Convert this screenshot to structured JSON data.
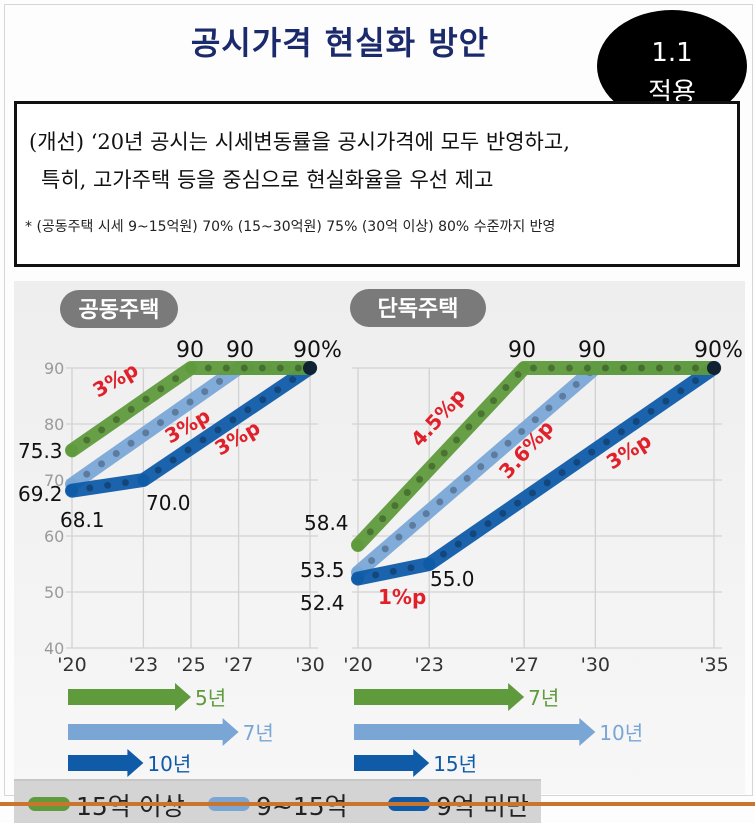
{
  "title": "공시가격 현실화 방안",
  "badge": {
    "line1": "1.1",
    "line2": "적용"
  },
  "summary": {
    "line1": "(개선) ‘20년 공시는 시세변동률을 공시가격에 모두 반영하고,",
    "line2": "특히, 고가주택 등을 중심으로 현실화율을 우선 제고",
    "note": "* (공동주택 시세 9~15억원) 70% (15~30억원) 75% (30억 이상) 80% 수준까지 반영"
  },
  "colors": {
    "green": "#5f9a3c",
    "light_blue": "#7aa6d6",
    "dark_blue": "#0f5ba8",
    "rate_red": "#e0202a"
  },
  "chart_data": [
    {
      "type": "line",
      "panel_label": "공동주택",
      "x": [
        "'20",
        "'23",
        "'25",
        "'27",
        "'30"
      ],
      "x_years": [
        2020,
        2023,
        2025,
        2027,
        2030
      ],
      "y_ticks": [
        "40",
        "50",
        "60",
        "70",
        "80",
        "90"
      ],
      "ylim": [
        40,
        90
      ],
      "grid": true,
      "series": [
        {
          "name": "15억 이상",
          "color": "#5f9a3c",
          "points": [
            [
              2020,
              75.3
            ],
            [
              2025,
              90
            ],
            [
              2030,
              90
            ]
          ],
          "rate": "3%p",
          "duration": "5년"
        },
        {
          "name": "9~15억",
          "color": "#7aa6d6",
          "points": [
            [
              2020,
              69.2
            ],
            [
              2027,
              90
            ],
            [
              2030,
              90
            ]
          ],
          "rate": "3%p",
          "duration": "7년"
        },
        {
          "name": "9억 미만",
          "color": "#0f5ba8",
          "points": [
            [
              2020,
              68.1
            ],
            [
              2023,
              70.0
            ],
            [
              2030,
              90
            ]
          ],
          "rate": "3%p",
          "duration": "10년"
        }
      ],
      "value_labels": [
        "75.3",
        "69.2",
        "68.1",
        "70.0",
        "90",
        "90",
        "90%"
      ]
    },
    {
      "type": "line",
      "panel_label": "단독주택",
      "x": [
        "'20",
        "'23",
        "'27",
        "'30",
        "'35"
      ],
      "x_years": [
        2020,
        2023,
        2027,
        2030,
        2035
      ],
      "ylim": [
        40,
        90
      ],
      "grid": true,
      "series": [
        {
          "name": "15억 이상",
          "color": "#5f9a3c",
          "points": [
            [
              2020,
              58.4
            ],
            [
              2027,
              90
            ],
            [
              2035,
              90
            ]
          ],
          "rate": "4.5%p",
          "duration": "7년"
        },
        {
          "name": "9~15억",
          "color": "#7aa6d6",
          "points": [
            [
              2020,
              53.5
            ],
            [
              2030,
              90
            ],
            [
              2035,
              90
            ]
          ],
          "rate": "3.6%p",
          "duration": "10년"
        },
        {
          "name": "9억 미만",
          "color": "#0f5ba8",
          "points": [
            [
              2020,
              52.4
            ],
            [
              2023,
              55.0
            ],
            [
              2035,
              90
            ]
          ],
          "rate": "3%p",
          "rate_first_segment": "1%p",
          "duration": "15년"
        }
      ],
      "value_labels": [
        "58.4",
        "53.5",
        "52.4",
        "55.0",
        "90",
        "90",
        "90%"
      ]
    }
  ],
  "legend": [
    {
      "label": "15억 이상",
      "color": "#5f9a3c"
    },
    {
      "label": "9~15억",
      "color": "#7aa6d6"
    },
    {
      "label": "9억 미만",
      "color": "#0f5ba8"
    }
  ]
}
